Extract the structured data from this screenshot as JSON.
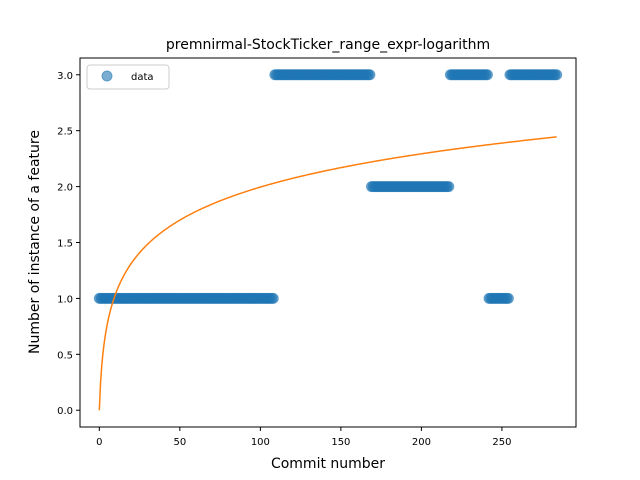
{
  "chart_data": {
    "type": "scatter",
    "title": "premnirmal-StockTicker_range_expr-logarithm",
    "xlabel": "Commit number",
    "ylabel": "Number of instance of a feature",
    "xlim": [
      -12,
      296
    ],
    "ylim": [
      -0.15,
      3.15
    ],
    "xticks": [
      0,
      50,
      100,
      150,
      200,
      250
    ],
    "yticks": [
      0.0,
      0.5,
      1.0,
      1.5,
      2.0,
      2.5,
      3.0
    ],
    "xtick_labels": [
      "0",
      "50",
      "100",
      "150",
      "200",
      "250"
    ],
    "ytick_labels": [
      "0.0",
      "0.5",
      "1.0",
      "1.5",
      "2.0",
      "2.5",
      "3.0"
    ],
    "grid": false,
    "legend": {
      "position": "top-left",
      "entries": [
        "data"
      ]
    },
    "series": [
      {
        "name": "data",
        "kind": "scatter",
        "color": "#1f77b4",
        "segments": [
          {
            "x_start": 0,
            "x_end": 108,
            "y": 1
          },
          {
            "x_start": 109,
            "x_end": 168,
            "y": 3
          },
          {
            "x_start": 169,
            "x_end": 217,
            "y": 2
          },
          {
            "x_start": 218,
            "x_end": 241,
            "y": 3
          },
          {
            "x_start": 242,
            "x_end": 254,
            "y": 1
          },
          {
            "x_start": 255,
            "x_end": 284,
            "y": 3
          }
        ]
      },
      {
        "name": "",
        "kind": "line",
        "color": "#ff7f0e",
        "model": "a*ln(x+1)",
        "a": 0.4324,
        "x_start": 0,
        "x_end": 284
      }
    ]
  }
}
